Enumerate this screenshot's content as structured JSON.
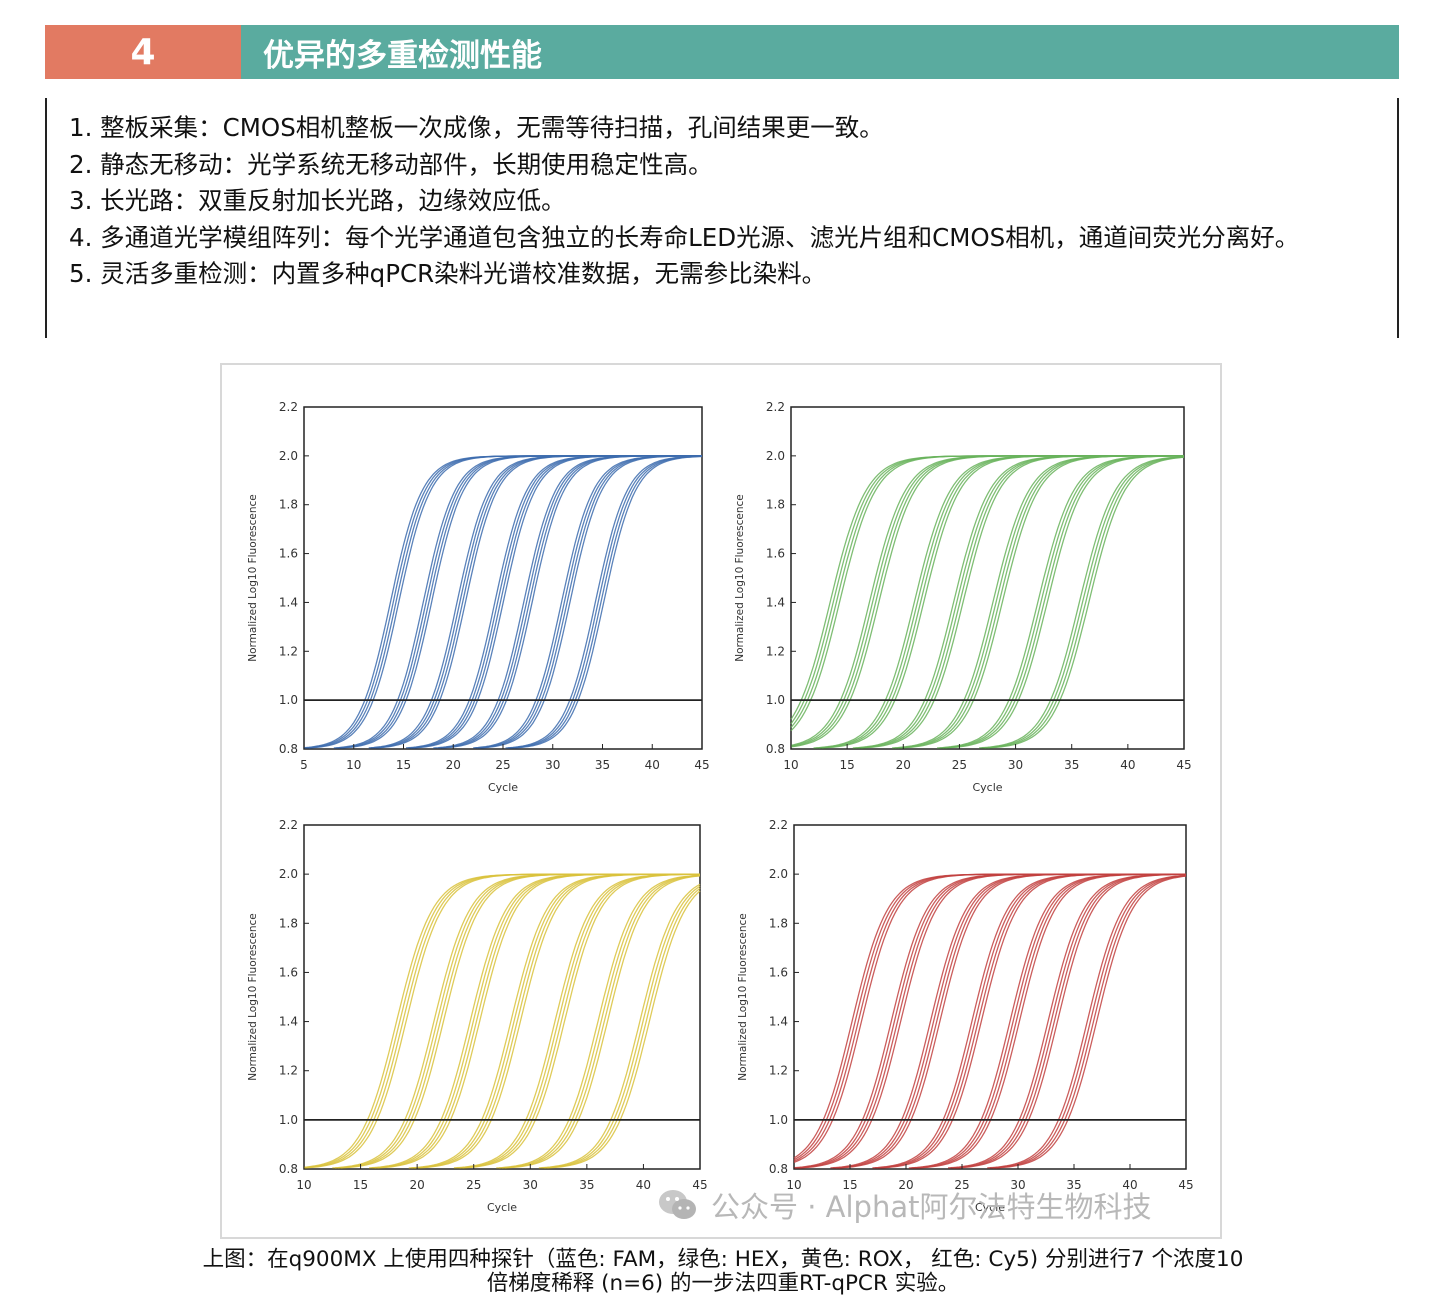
{
  "header": {
    "number": "4",
    "title": "优异的多重检测性能"
  },
  "features": [
    "1. 整板采集：CMOS相机整板一次成像，无需等待扫描，孔间结果更一致。",
    "2. 静态无移动：光学系统无移动部件，长期使用稳定性高。",
    "3. 长光路：双重反射加长光路，边缘效应低。",
    "4. 多通道光学模组阵列：每个光学通道包含独立的长寿命LED光源、滤光片组和CMOS相机，通道间荧光分离好。",
    "5. 灵活多重检测：内置多种qPCR染料光谱校准数据，无需参比染料。"
  ],
  "chart_data": [
    {
      "type": "line",
      "channel": "FAM",
      "color": "#3d6cae",
      "xlabel": "Cycle",
      "ylabel": "Normalized Log10 Fluorescence",
      "xlim": [
        5,
        45
      ],
      "ylim": [
        0.8,
        2.2
      ],
      "xticks": [
        5,
        10,
        15,
        20,
        25,
        30,
        35,
        40,
        45
      ],
      "yticks": [
        0.8,
        1.0,
        1.2,
        1.4,
        1.6,
        1.8,
        2.0,
        2.2
      ],
      "threshold": 1.0,
      "grid": false,
      "ct_values": [
        12,
        15.3,
        18.7,
        22.5,
        25.4,
        29.2,
        32.6
      ]
    },
    {
      "type": "line",
      "channel": "HEX",
      "color": "#69b35c",
      "xlabel": "Cycle",
      "ylabel": "Normalized Log10 Fluorescence",
      "xlim": [
        10,
        45
      ],
      "ylim": [
        0.8,
        2.2
      ],
      "xticks": [
        10,
        15,
        20,
        25,
        30,
        35,
        40,
        45
      ],
      "yticks": [
        0.8,
        1.0,
        1.2,
        1.4,
        1.6,
        1.8,
        2.0,
        2.2
      ],
      "threshold": 1.0,
      "grid": false,
      "ct_values": [
        11.8,
        15.3,
        19.3,
        22.8,
        26.3,
        30.3,
        34.0
      ]
    },
    {
      "type": "line",
      "channel": "ROX",
      "color": "#d9c23c",
      "xlabel": "Cycle",
      "ylabel": "Normalized Log10 Fluorescence",
      "xlim": [
        10,
        45
      ],
      "ylim": [
        0.8,
        2.2
      ],
      "xticks": [
        10,
        15,
        20,
        25,
        30,
        35,
        40,
        45
      ],
      "yticks": [
        0.8,
        1.0,
        1.2,
        1.4,
        1.6,
        1.8,
        2.0,
        2.2
      ],
      "threshold": 1.0,
      "grid": false,
      "ct_values": [
        16.5,
        19.8,
        23.0,
        26.6,
        30.5,
        34.3,
        38.0
      ]
    },
    {
      "type": "line",
      "channel": "Cy5",
      "color": "#c2413f",
      "xlabel": "Cycle",
      "ylabel": "Normalized Log10 Fluorescence",
      "xlim": [
        10,
        45
      ],
      "ylim": [
        0.8,
        2.2
      ],
      "xticks": [
        10,
        15,
        20,
        25,
        30,
        35,
        40,
        45
      ],
      "yticks": [
        0.8,
        1.0,
        1.2,
        1.4,
        1.6,
        1.8,
        2.0,
        2.2
      ],
      "threshold": 1.0,
      "grid": false,
      "ct_values": [
        13.5,
        17.0,
        20.5,
        24.2,
        27.6,
        31.0,
        34.5
      ]
    }
  ],
  "watermark": "公众号 · Alphat阿尔法特生物科技",
  "caption": {
    "line1": "上图：在q900MX 上使用四种探针（蓝色: FAM，绿色: HEX，黄色: ROX， 红色: Cy5) 分别进行7 个浓度10",
    "line2": "倍梯度稀释 (n=6) 的一步法四重RT-qPCR 实验。"
  }
}
